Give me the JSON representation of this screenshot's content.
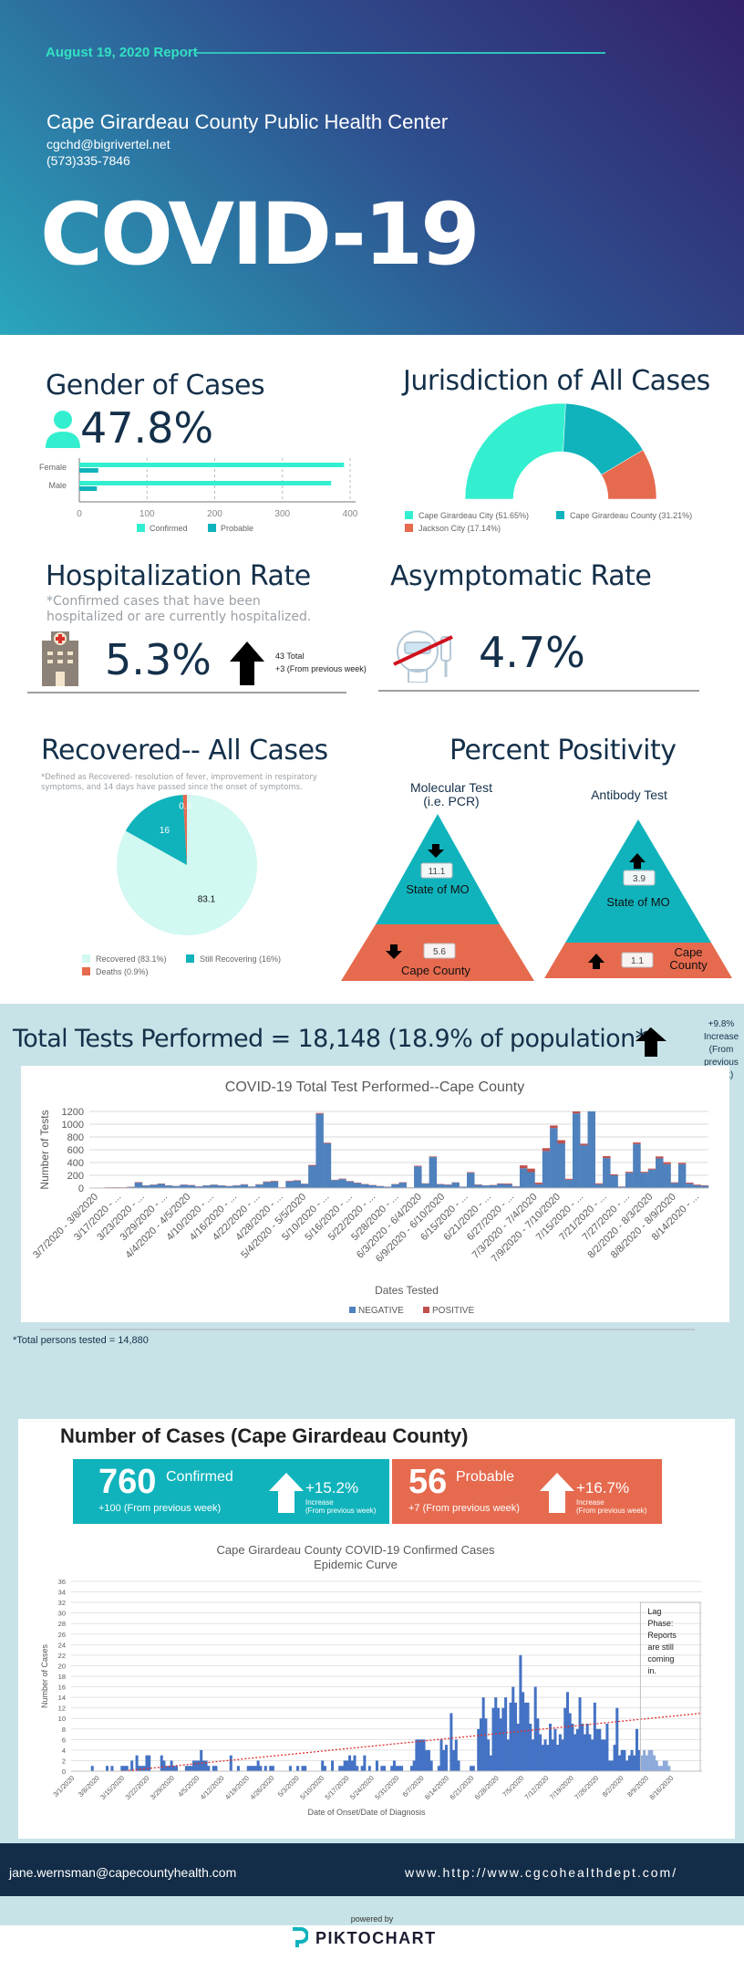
{
  "header": {
    "report_date": "August 19, 2020 Report",
    "org_name": "Cape Girardeau County Public Health Center",
    "email": "cgchd@bigrivertel.net",
    "phone": "(573)335-7846",
    "title": "COVID-19"
  },
  "gender": {
    "title": "Gender of Cases",
    "percent": "47.8%",
    "icon": "person-icon"
  },
  "jurisdiction": {
    "title": "Jurisdiction of All Cases"
  },
  "hospitalization": {
    "title": "Hospitalization Rate",
    "note_line1": "*Confirmed cases that have been",
    "note_line2": "hospitalized or are currently hospitalized.",
    "rate": "5.3%",
    "total": "43 Total",
    "change": "+3 (From previous week)",
    "icon": "hospital-icon"
  },
  "asymptomatic": {
    "title": "Asymptomatic Rate",
    "rate": "4.7%",
    "icon": "no-symptoms-icon"
  },
  "recovered": {
    "title": "Recovered-- All Cases",
    "note_line1": "*Defined as Recovered- resolution of fever, improvement in respiratory",
    "note_line2": "symptoms, and 14 days have passed since the onset of  symptoms."
  },
  "positivity": {
    "title": "Percent Positivity",
    "molecular": {
      "label_line1": "Molecular Test",
      "label_line2": "(i.e. PCR)",
      "state_label": "State of MO",
      "state_value": "11.1",
      "state_trend": "down",
      "county_label": "Cape  County",
      "county_value": "5.6",
      "county_trend": "down"
    },
    "antibody": {
      "label": "Antibody Test",
      "state_label": "State of MO",
      "state_value": "3.9",
      "state_trend": "up",
      "county_label_line1": "Cape",
      "county_label_line2": "County",
      "county_value": "1.1",
      "county_trend": "up"
    }
  },
  "tests": {
    "title": "Total Tests Performed = 18,148 (18.9% of population*)",
    "change_line1": "+9.8% Increase",
    "change_line2": "(From previous",
    "change_line3": "week)",
    "footnote": "*Total persons tested = 14,880"
  },
  "cases": {
    "title": "Number of Cases (Cape Girardeau County)",
    "confirmed_count": "760",
    "confirmed_label": "Confirmed",
    "confirmed_change": "+100 (From previous week)",
    "confirmed_pct": "+15.2%",
    "confirmed_pct_label1": "Increase",
    "confirmed_pct_label2": "(From previous week)",
    "probable_count": "56",
    "probable_label": "Probable",
    "probable_change": "+7 (From previous week)",
    "probable_pct": "+16.7%",
    "probable_pct_label1": "Increase",
    "probable_pct_label2": "(From previous week)"
  },
  "footer": {
    "email": "jane.wernsman@capecountyhealth.com",
    "url": "www.http://www.cgcohealthdept.com/",
    "powered_by": "powered by",
    "brand": "PIKTOCHART"
  },
  "colors": {
    "teal_light": "#33efcf",
    "teal": "#10b3bc",
    "coral": "#e66a4e",
    "mint": "#d1f8f1",
    "navy": "#14304a",
    "bar_blue": "#4f81bd",
    "bar_red": "#c0504d",
    "epi_blue": "#4472c4",
    "epi_lag": "#8eaadb"
  },
  "chart_data": [
    {
      "type": "bar",
      "title": "",
      "orientation": "horizontal",
      "categories": [
        "Female",
        "Male"
      ],
      "series": [
        {
          "name": "Confirmed",
          "values": [
            391,
            372
          ]
        },
        {
          "name": "Probable",
          "values": [
            28,
            26
          ]
        }
      ],
      "xlim": [
        0,
        400
      ],
      "xticks": [
        "0",
        "100",
        "200",
        "300",
        "400"
      ],
      "legend": "bottom",
      "grid": true
    },
    {
      "type": "pie",
      "variant": "half-donut",
      "title": "",
      "labels": [
        "Cape Girardeau City (51.65%)",
        "Cape Girardeau County (31.21%)",
        "Jackson City (17.14%)"
      ],
      "values": [
        51.65,
        31.21,
        17.14
      ],
      "legend": "bottom"
    },
    {
      "type": "pie",
      "title": "",
      "labels": [
        "Recovered (83.1%)",
        "Still Recovering (16%)",
        "Deaths (0.9%)"
      ],
      "values": [
        83.1,
        16,
        0.9
      ],
      "data_labels": [
        "83.1",
        "16",
        "0.9"
      ],
      "legend": "bottom"
    },
    {
      "type": "bar",
      "stacked": true,
      "title": "COVID-19 Total Test Performed--Cape  County",
      "xlabel": "Dates Tested",
      "ylabel": "Number of Tests",
      "ylim": [
        0,
        1200
      ],
      "yticks": [
        "0",
        "200",
        "400",
        "600",
        "800",
        "1000",
        "1200"
      ],
      "tick_labels": [
        "3/7/2020 - 3/8/2020",
        "3/17/2020 - ...",
        "3/23/2020 - ...",
        "3/29/2020 - ...",
        "4/4/2020 - 4/5/2020",
        "4/10/2020 - ...",
        "4/16/2020 - ...",
        "4/22/2020 - ...",
        "4/28/2020 - ...",
        "5/4/2020 - 5/5/2020",
        "5/10/2020 - ...",
        "5/16/2020 - ...",
        "5/22/2020 - ...",
        "5/28/2020 - ...",
        "6/3/2020 - 6/4/2020",
        "6/9/2020 - 6/10/2020",
        "6/15/2020 - ...",
        "6/21/2020 - ...",
        "6/27/2020 - ...",
        "7/3/2020 - 7/4/2020",
        "7/9/2020 - 7/10/2020",
        "7/15/2020 - ...",
        "7/21/2020 - ...",
        "7/27/2020 - ...",
        "8/2/2020 - 8/3/2020",
        "8/8/2020 - 8/9/2020",
        "8/14/2020 - ..."
      ],
      "series": [
        {
          "name": "NEGATIVE",
          "values": [
            0,
            0,
            8,
            10,
            8,
            18,
            85,
            40,
            50,
            65,
            40,
            30,
            50,
            45,
            25,
            40,
            50,
            40,
            30,
            40,
            55,
            22,
            55,
            95,
            105,
            10,
            105,
            115,
            65,
            350,
            1160,
            700,
            125,
            140,
            105,
            80,
            60,
            45,
            30,
            20,
            60,
            85,
            10,
            340,
            70,
            485,
            60,
            50,
            85,
            20,
            240,
            50,
            40,
            45,
            65,
            60,
            25,
            310,
            250,
            60,
            580,
            940,
            700,
            130,
            1170,
            670,
            1200,
            60,
            470,
            200,
            20,
            240,
            690,
            240,
            290,
            465,
            375,
            80,
            375,
            70,
            45,
            35
          ]
        },
        {
          "name": "POSITIVE",
          "values": [
            0,
            0,
            4,
            4,
            4,
            4,
            8,
            4,
            4,
            6,
            4,
            3,
            4,
            4,
            3,
            4,
            4,
            4,
            3,
            4,
            5,
            3,
            5,
            8,
            8,
            3,
            8,
            8,
            4,
            12,
            15,
            10,
            5,
            8,
            6,
            6,
            5,
            4,
            3,
            3,
            5,
            6,
            2,
            10,
            5,
            10,
            5,
            5,
            5,
            3,
            10,
            6,
            4,
            5,
            8,
            12,
            5,
            45,
            55,
            25,
            45,
            40,
            50,
            15,
            30,
            25,
            0,
            15,
            30,
            15,
            5,
            15,
            25,
            15,
            15,
            30,
            30,
            10,
            20,
            15,
            10,
            8
          ]
        }
      ],
      "legend": "bottom",
      "grid": true
    },
    {
      "type": "bar",
      "title": "Cape Girardeau County COVID-19 Confirmed Cases\nEpidemic Curve",
      "xlabel": "Date of Onset/Date of Diagnosis",
      "ylabel": "Number of Cases",
      "ylim": [
        0,
        36
      ],
      "yticks": [
        "0",
        "2",
        "4",
        "6",
        "8",
        "10",
        "12",
        "14",
        "16",
        "18",
        "20",
        "22",
        "24",
        "26",
        "28",
        "30",
        "32",
        "34",
        "36"
      ],
      "tick_labels": [
        "3/1/2020",
        "3/8/2020",
        "3/15/2020",
        "3/22/2020",
        "3/29/2020",
        "4/5/2020",
        "4/12/2020",
        "4/19/2020",
        "4/26/2020",
        "5/3/2020",
        "5/10/2020",
        "5/17/2020",
        "5/24/2020",
        "5/31/2020",
        "6/7/2020",
        "6/14/2020",
        "6/21/2020",
        "6/28/2020",
        "7/5/2020",
        "7/12/2020",
        "7/19/2020",
        "7/26/2020",
        "8/2/2020",
        "8/9/2020",
        "8/16/2020"
      ],
      "x_start": "3/1/2020",
      "values": [
        0,
        0,
        0,
        0,
        0,
        0,
        0,
        0,
        1,
        0,
        0,
        0,
        0,
        0,
        1,
        0,
        1,
        0,
        0,
        0,
        1,
        1,
        1,
        0,
        2,
        0,
        3,
        1,
        1,
        1,
        3,
        3,
        0,
        0,
        0,
        0,
        3,
        2,
        1,
        1,
        2,
        1,
        1,
        0,
        0,
        0,
        1,
        1,
        1,
        2,
        2,
        2,
        4,
        2,
        2,
        1,
        0,
        1,
        1,
        0,
        0,
        0,
        0,
        0,
        3,
        0,
        0,
        1,
        0,
        0,
        0,
        1,
        1,
        1,
        1,
        2,
        1,
        0,
        1,
        0,
        1,
        1,
        0,
        0,
        0,
        0,
        0,
        0,
        1,
        0,
        0,
        1,
        0,
        1,
        1,
        0,
        0,
        0,
        0,
        0,
        0,
        2,
        1,
        0,
        0,
        2,
        0,
        0,
        1,
        1,
        2,
        2,
        3,
        2,
        3,
        1,
        0,
        1,
        3,
        0,
        1,
        0,
        0,
        2,
        0,
        1,
        1,
        0,
        0,
        1,
        2,
        1,
        1,
        1,
        0,
        0,
        0,
        1,
        2,
        6,
        6,
        6,
        6,
        4,
        4,
        2,
        0,
        0,
        1,
        6,
        4,
        5,
        0,
        11,
        4,
        6,
        2,
        0,
        0,
        0,
        0,
        1,
        1,
        0,
        8,
        10,
        14,
        10,
        6,
        3,
        12,
        14,
        12,
        10,
        12,
        14,
        6,
        13,
        16,
        13,
        9,
        22,
        15,
        13,
        13,
        9,
        6,
        16,
        10,
        7,
        5,
        6,
        5,
        9,
        6,
        8,
        5,
        7,
        6,
        12,
        15,
        11,
        9,
        7,
        8,
        14,
        9,
        7,
        9,
        7,
        6,
        13,
        8,
        8,
        6,
        6,
        9,
        2,
        2,
        5,
        12,
        3,
        4,
        4,
        2,
        3,
        4,
        3,
        8,
        4,
        3,
        4,
        3,
        4,
        4,
        3,
        2,
        1,
        1,
        2,
        2,
        1
      ],
      "lag_phase_from": "8/5/2020",
      "annotation": "Lag Phase: Reports are still coming in.",
      "trendline": {
        "style": "dotted",
        "color": "red",
        "start": 0,
        "end": 11
      },
      "grid": true
    }
  ],
  "legends": {
    "gender": [
      "Confirmed",
      "Probable"
    ],
    "jurisdiction": [
      "Cape Girardeau City (51.65%)",
      "Cape Girardeau County (31.21%)",
      "Jackson City (17.14%)"
    ],
    "recovered": [
      "Recovered (83.1%)",
      "Still Recovering (16%)",
      "Deaths (0.9%)"
    ],
    "tests": [
      "NEGATIVE",
      "POSITIVE"
    ],
    "epi_annotation": [
      "Lag",
      "Phase:",
      "Reports",
      "are still",
      "coming",
      "in."
    ]
  }
}
